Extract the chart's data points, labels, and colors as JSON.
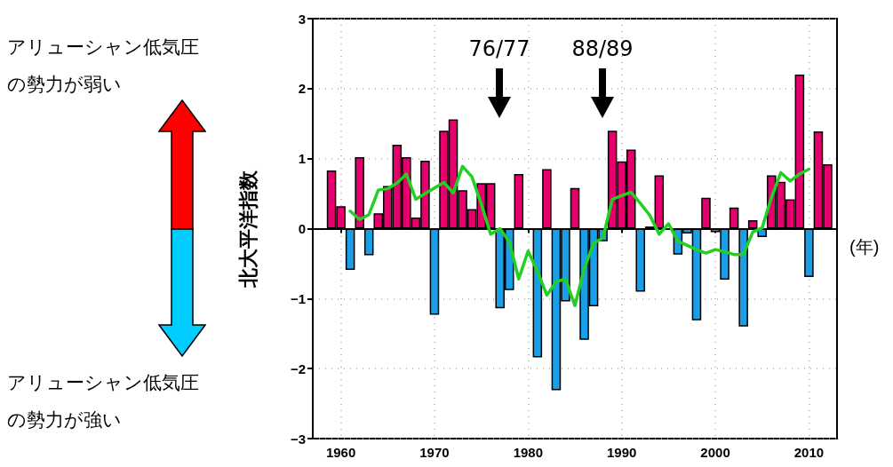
{
  "chart_data": {
    "type": "bar",
    "ylabel": "北大平洋指数",
    "xlabel": "(年)",
    "annotations": [
      "アリューシャン低気圧の勢力が弱い",
      "アリューシャン低気圧の勢力が強い",
      "76/77",
      "88/89"
    ],
    "xlim": [
      1957,
      2013
    ],
    "xticks": [
      1960,
      1970,
      1980,
      1990,
      2000,
      2010
    ],
    "ylim": [
      -3,
      3
    ],
    "yticks": [
      {
        "value": -3,
        "label": "−3"
      },
      {
        "value": -2,
        "label": "−2"
      },
      {
        "value": -1,
        "label": "−1"
      },
      0,
      1,
      2,
      3
    ],
    "grid": true,
    "series": [
      {
        "x": [
          1959,
          1960,
          1961,
          1962,
          1963,
          1964,
          1965,
          1966,
          1967,
          1968,
          1969,
          1970,
          1971,
          1972,
          1973,
          1974,
          1975,
          1976,
          1977,
          1978,
          1979,
          1980,
          1981,
          1982,
          1983,
          1984,
          1985,
          1986,
          1987,
          1988,
          1989,
          1990,
          1991,
          1992,
          1993,
          1994,
          1995,
          1996,
          1997,
          1998,
          1999,
          2000,
          2001,
          2002,
          2003,
          2004,
          2005,
          2006,
          2007,
          2008,
          2009,
          2010,
          2011,
          2012
        ],
        "values": [
          0.83,
          0.32,
          -0.59,
          1.02,
          -0.38,
          0.22,
          0.61,
          1.2,
          1.02,
          0.16,
          0.97,
          -1.23,
          1.4,
          1.56,
          0.55,
          0.28,
          0.65,
          0.65,
          -1.14,
          -0.88,
          0.78,
          null,
          -1.84,
          0.85,
          -2.31,
          -1.04,
          0.58,
          -1.59,
          -1.11,
          -0.18,
          1.4,
          0.96,
          1.13,
          -0.9,
          0.03,
          0.76,
          null,
          -0.37,
          -0.07,
          -1.31,
          0.44,
          -0.05,
          -0.73,
          0.3,
          -1.4,
          0.12,
          -0.12,
          0.76,
          0.67,
          0.42,
          2.2,
          -0.69,
          1.39,
          0.92
        ],
        "colors": [
          "#e5006e",
          "#e5006e",
          "#1a9ee8",
          "#e5006e",
          "#1a9ee8",
          "#e5006e",
          "#e5006e",
          "#e5006e",
          "#e5006e",
          "#e5006e",
          "#e5006e",
          "#1a9ee8",
          "#e5006e",
          "#e5006e",
          "#e5006e",
          "#e5006e",
          "#e5006e",
          "#e5006e",
          "#1a9ee8",
          "#1a9ee8",
          "#e5006e",
          null,
          "#1a9ee8",
          "#e5006e",
          "#1a9ee8",
          "#1a9ee8",
          "#e5006e",
          "#1a9ee8",
          "#1a9ee8",
          "#1a9ee8",
          "#e5006e",
          "#e5006e",
          "#e5006e",
          "#1a9ee8",
          "#e5006e",
          "#e5006e",
          null,
          "#1a9ee8",
          "#1a9ee8",
          "#1a9ee8",
          "#e5006e",
          "#1a9ee8",
          "#1a9ee8",
          "#e5006e",
          "#1a9ee8",
          "#e5006e",
          "#1a9ee8",
          "#e5006e",
          "#e5006e",
          "#e5006e",
          "#e5006e",
          "#1a9ee8",
          "#e5006e",
          "#e5006e"
        ]
      },
      {
        "type": "line",
        "color": "#22d022",
        "x": [
          1961,
          1962,
          1963,
          1964,
          1965,
          1966,
          1967,
          1968,
          1969,
          1970,
          1971,
          1972,
          1973,
          1974,
          1975,
          1976,
          1977,
          1978,
          1979,
          1980,
          1981,
          1982,
          1983,
          1984,
          1985,
          1986,
          1987,
          1988,
          1989,
          1990,
          1991,
          1992,
          1993,
          1994,
          1995,
          1996,
          1997,
          1998,
          1999,
          2000,
          2001,
          2002,
          2003,
          2004,
          2005,
          2006,
          2007,
          2008,
          2009,
          2010
        ],
        "values": [
          0.25,
          0.13,
          0.2,
          0.55,
          0.57,
          0.65,
          0.78,
          0.42,
          0.5,
          0.58,
          0.66,
          0.51,
          0.89,
          0.74,
          0.35,
          -0.08,
          0.0,
          -0.19,
          -0.72,
          -0.32,
          -0.61,
          -0.95,
          -0.76,
          -0.72,
          -1.1,
          -0.57,
          -0.21,
          -0.13,
          0.42,
          0.47,
          0.52,
          0.36,
          0.19,
          -0.08,
          0.07,
          -0.18,
          -0.24,
          -0.3,
          -0.35,
          -0.3,
          -0.33,
          -0.37,
          -0.37,
          -0.05,
          0.01,
          0.45,
          0.8,
          0.68,
          0.78,
          0.85
        ]
      }
    ],
    "marker": "none",
    "line_style": "solid"
  }
}
